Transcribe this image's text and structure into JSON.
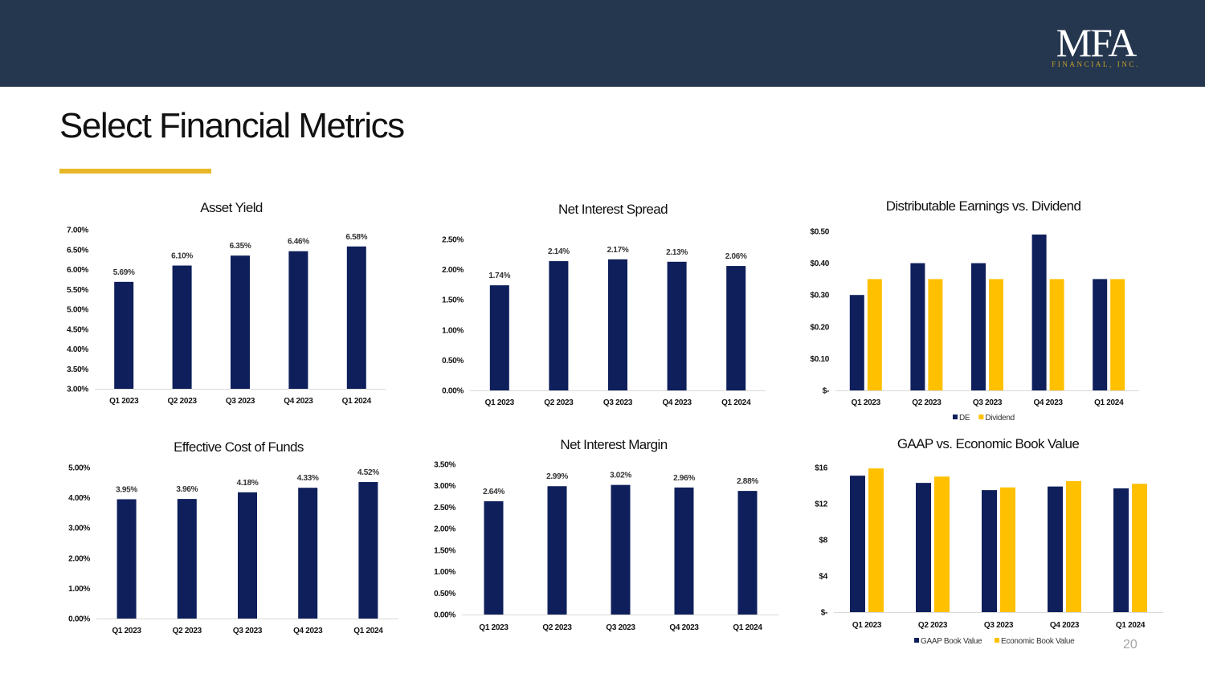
{
  "header": {
    "logo_text": "MFA",
    "logo_subtext": "FINANCIAL, INC."
  },
  "page": {
    "title": "Select Financial Metrics",
    "page_number": "20"
  },
  "colors": {
    "navy": "#0e1f5b",
    "gold": "#ffc000",
    "header_bg": "#25374f",
    "accent_line": "#e7b727"
  },
  "chart_data": [
    {
      "id": "asset-yield",
      "type": "bar",
      "title": "Asset Yield",
      "categories": [
        "Q1 2023",
        "Q2 2023",
        "Q3 2023",
        "Q4 2023",
        "Q1 2024"
      ],
      "series": [
        {
          "name": "Asset Yield",
          "values": [
            5.69,
            6.1,
            6.35,
            6.46,
            6.58
          ],
          "color": "#0e1f5b"
        }
      ],
      "data_labels": [
        "5.69%",
        "6.10%",
        "6.35%",
        "6.46%",
        "6.58%"
      ],
      "ylim": [
        3.0,
        7.0
      ],
      "yticks": [
        3.0,
        3.5,
        4.0,
        4.5,
        5.0,
        5.5,
        6.0,
        6.5,
        7.0
      ],
      "ytick_labels": [
        "3.00%",
        "3.50%",
        "4.00%",
        "4.50%",
        "5.00%",
        "5.50%",
        "6.00%",
        "6.50%",
        "7.00%"
      ],
      "legend": []
    },
    {
      "id": "net-interest-spread",
      "type": "bar",
      "title": "Net Interest Spread",
      "categories": [
        "Q1 2023",
        "Q2 2023",
        "Q3 2023",
        "Q4 2023",
        "Q1 2024"
      ],
      "series": [
        {
          "name": "Net Interest Spread",
          "values": [
            1.74,
            2.14,
            2.17,
            2.13,
            2.06
          ],
          "color": "#0e1f5b"
        }
      ],
      "data_labels": [
        "1.74%",
        "2.14%",
        "2.17%",
        "2.13%",
        "2.06%"
      ],
      "ylim": [
        0,
        2.5
      ],
      "yticks": [
        0,
        0.5,
        1.0,
        1.5,
        2.0,
        2.5
      ],
      "ytick_labels": [
        "0.00%",
        "0.50%",
        "1.00%",
        "1.50%",
        "2.00%",
        "2.50%"
      ],
      "legend": []
    },
    {
      "id": "distributable-earnings",
      "type": "bar",
      "title": "Distributable Earnings vs. Dividend",
      "categories": [
        "Q1 2023",
        "Q2 2023",
        "Q3 2023",
        "Q4 2023",
        "Q1 2024"
      ],
      "series": [
        {
          "name": "DE",
          "values": [
            0.3,
            0.4,
            0.4,
            0.49,
            0.35
          ],
          "color": "#0e1f5b"
        },
        {
          "name": "Dividend",
          "values": [
            0.35,
            0.35,
            0.35,
            0.35,
            0.35
          ],
          "color": "#ffc000"
        }
      ],
      "data_labels": [],
      "ylim": [
        0,
        0.5
      ],
      "yticks": [
        0,
        0.1,
        0.2,
        0.3,
        0.4,
        0.5
      ],
      "ytick_labels": [
        "$-",
        "$0.10",
        "$0.20",
        "$0.30",
        "$0.40",
        "$0.50"
      ],
      "legend": [
        "DE",
        "Dividend"
      ]
    },
    {
      "id": "effective-cost-of-funds",
      "type": "bar",
      "title": "Effective Cost of Funds",
      "categories": [
        "Q1 2023",
        "Q2 2023",
        "Q3 2023",
        "Q4 2023",
        "Q1 2024"
      ],
      "series": [
        {
          "name": "Effective Cost of Funds",
          "values": [
            3.95,
            3.96,
            4.18,
            4.33,
            4.52
          ],
          "color": "#0e1f5b"
        }
      ],
      "data_labels": [
        "3.95%",
        "3.96%",
        "4.18%",
        "4.33%",
        "4.52%"
      ],
      "ylim": [
        0,
        5.0
      ],
      "yticks": [
        0,
        1,
        2,
        3,
        4,
        5
      ],
      "ytick_labels": [
        "0.00%",
        "1.00%",
        "2.00%",
        "3.00%",
        "4.00%",
        "5.00%"
      ],
      "legend": []
    },
    {
      "id": "net-interest-margin",
      "type": "bar",
      "title": "Net Interest Margin",
      "categories": [
        "Q1 2023",
        "Q2 2023",
        "Q3 2023",
        "Q4 2023",
        "Q1 2024"
      ],
      "series": [
        {
          "name": "Net Interest Margin",
          "values": [
            2.64,
            2.99,
            3.02,
            2.96,
            2.88
          ],
          "color": "#0e1f5b"
        }
      ],
      "data_labels": [
        "2.64%",
        "2.99%",
        "3.02%",
        "2.96%",
        "2.88%"
      ],
      "ylim": [
        0,
        3.5
      ],
      "yticks": [
        0,
        0.5,
        1.0,
        1.5,
        2.0,
        2.5,
        3.0,
        3.5
      ],
      "ytick_labels": [
        "0.00%",
        "0.50%",
        "1.00%",
        "1.50%",
        "2.00%",
        "2.50%",
        "3.00%",
        "3.50%"
      ],
      "legend": []
    },
    {
      "id": "book-value",
      "type": "bar",
      "title": "GAAP vs. Economic Book Value",
      "categories": [
        "Q1 2023",
        "Q2 2023",
        "Q3 2023",
        "Q4 2023",
        "Q1 2024"
      ],
      "series": [
        {
          "name": "GAAP Book Value",
          "values": [
            15.1,
            14.3,
            13.5,
            13.9,
            13.7
          ],
          "color": "#0e1f5b"
        },
        {
          "name": "Economic Book Value",
          "values": [
            15.9,
            15.0,
            13.8,
            14.5,
            14.2
          ],
          "color": "#ffc000"
        }
      ],
      "data_labels": [],
      "ylim": [
        0,
        16
      ],
      "yticks": [
        0,
        4,
        8,
        12,
        16
      ],
      "ytick_labels": [
        "$-",
        "$4",
        "$8",
        "$12",
        "$16"
      ],
      "legend": [
        "GAAP Book Value",
        "Economic Book Value"
      ]
    }
  ]
}
